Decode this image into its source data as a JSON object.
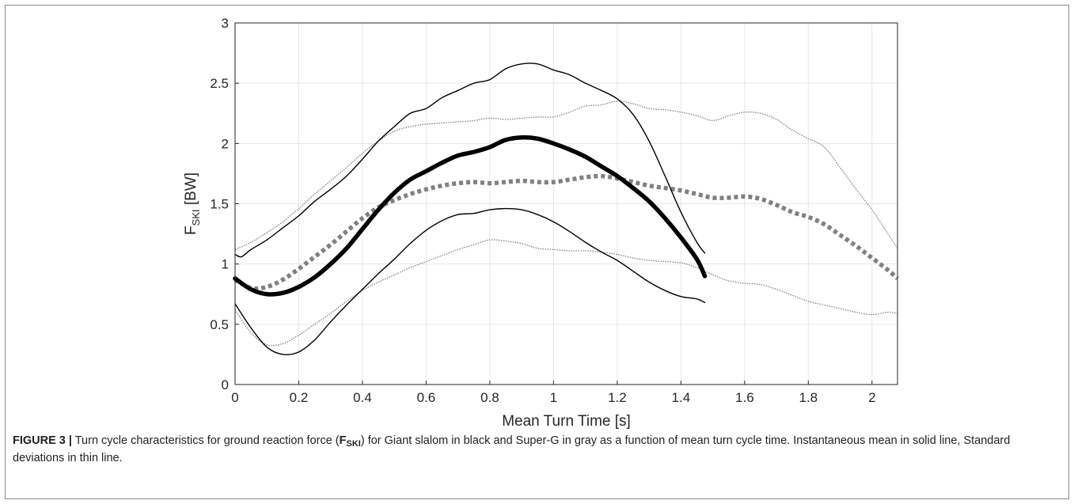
{
  "chart_data": {
    "type": "line",
    "xlabel": "Mean Turn Time [s]",
    "ylabel_main": "F",
    "ylabel_sub": "SKI",
    "ylabel_unit": " [BW]",
    "xlim": [
      0,
      2.08
    ],
    "ylim": [
      0,
      3
    ],
    "xticks": [
      0,
      0.2,
      0.4,
      0.6,
      0.8,
      1,
      1.2,
      1.4,
      1.6,
      1.8,
      2
    ],
    "yticks": [
      0,
      0.5,
      1,
      1.5,
      2,
      2.5,
      3
    ],
    "grid": true,
    "series": [
      {
        "color": "#000000",
        "style": "mean-solid",
        "x": [
          0,
          0.05,
          0.1,
          0.15,
          0.2,
          0.25,
          0.3,
          0.35,
          0.4,
          0.45,
          0.5,
          0.55,
          0.6,
          0.65,
          0.7,
          0.75,
          0.8,
          0.85,
          0.9,
          0.95,
          1.0,
          1.05,
          1.1,
          1.15,
          1.2,
          1.25,
          1.3,
          1.35,
          1.4,
          1.45,
          1.475
        ],
        "y": [
          0.88,
          0.79,
          0.75,
          0.76,
          0.81,
          0.89,
          1.0,
          1.13,
          1.29,
          1.45,
          1.59,
          1.7,
          1.77,
          1.84,
          1.9,
          1.93,
          1.97,
          2.03,
          2.05,
          2.04,
          2.0,
          1.95,
          1.89,
          1.81,
          1.73,
          1.63,
          1.52,
          1.38,
          1.22,
          1.04,
          0.9
        ]
      },
      {
        "color": "#000000",
        "style": "sd-solid",
        "x": [
          0,
          0.02,
          0.05,
          0.1,
          0.15,
          0.2,
          0.25,
          0.3,
          0.35,
          0.4,
          0.45,
          0.5,
          0.55,
          0.6,
          0.65,
          0.7,
          0.75,
          0.8,
          0.85,
          0.9,
          0.95,
          1.0,
          1.05,
          1.1,
          1.15,
          1.2,
          1.25,
          1.3,
          1.35,
          1.4,
          1.45,
          1.475
        ],
        "y": [
          1.08,
          1.06,
          1.12,
          1.2,
          1.3,
          1.4,
          1.52,
          1.62,
          1.73,
          1.87,
          2.02,
          2.14,
          2.25,
          2.29,
          2.38,
          2.44,
          2.5,
          2.53,
          2.62,
          2.66,
          2.66,
          2.61,
          2.57,
          2.5,
          2.44,
          2.37,
          2.24,
          2.02,
          1.73,
          1.43,
          1.18,
          1.09
        ]
      },
      {
        "color": "#000000",
        "style": "sd-solid",
        "x": [
          0,
          0.05,
          0.1,
          0.15,
          0.2,
          0.25,
          0.3,
          0.35,
          0.4,
          0.45,
          0.5,
          0.55,
          0.6,
          0.65,
          0.7,
          0.75,
          0.8,
          0.85,
          0.9,
          0.95,
          1.0,
          1.05,
          1.1,
          1.15,
          1.2,
          1.25,
          1.3,
          1.35,
          1.4,
          1.45,
          1.475
        ],
        "y": [
          0.67,
          0.47,
          0.31,
          0.25,
          0.27,
          0.37,
          0.52,
          0.66,
          0.79,
          0.92,
          1.04,
          1.17,
          1.28,
          1.36,
          1.41,
          1.42,
          1.45,
          1.46,
          1.45,
          1.41,
          1.35,
          1.27,
          1.18,
          1.1,
          1.03,
          0.94,
          0.85,
          0.78,
          0.73,
          0.71,
          0.68
        ]
      },
      {
        "color": "#808080",
        "style": "mean-dotted",
        "x": [
          0,
          0.05,
          0.1,
          0.15,
          0.2,
          0.25,
          0.3,
          0.35,
          0.4,
          0.45,
          0.5,
          0.55,
          0.6,
          0.65,
          0.7,
          0.75,
          0.8,
          0.85,
          0.9,
          0.95,
          1.0,
          1.05,
          1.1,
          1.15,
          1.2,
          1.25,
          1.3,
          1.35,
          1.4,
          1.45,
          1.5,
          1.55,
          1.6,
          1.65,
          1.7,
          1.75,
          1.8,
          1.85,
          1.9,
          1.95,
          2.0,
          2.05,
          2.08
        ],
        "y": [
          0.87,
          0.8,
          0.81,
          0.87,
          0.96,
          1.06,
          1.16,
          1.27,
          1.38,
          1.47,
          1.53,
          1.58,
          1.62,
          1.65,
          1.67,
          1.68,
          1.67,
          1.68,
          1.69,
          1.68,
          1.68,
          1.7,
          1.72,
          1.73,
          1.71,
          1.68,
          1.65,
          1.63,
          1.61,
          1.58,
          1.55,
          1.55,
          1.56,
          1.54,
          1.49,
          1.43,
          1.39,
          1.33,
          1.24,
          1.15,
          1.05,
          0.95,
          0.88
        ]
      },
      {
        "color": "#808080",
        "style": "sd-dotted",
        "x": [
          0,
          0.05,
          0.1,
          0.15,
          0.2,
          0.25,
          0.3,
          0.35,
          0.4,
          0.45,
          0.5,
          0.55,
          0.6,
          0.65,
          0.7,
          0.75,
          0.8,
          0.85,
          0.9,
          0.95,
          1.0,
          1.05,
          1.1,
          1.15,
          1.2,
          1.25,
          1.3,
          1.35,
          1.4,
          1.45,
          1.5,
          1.55,
          1.6,
          1.65,
          1.7,
          1.75,
          1.8,
          1.85,
          1.9,
          1.95,
          2.0,
          2.05,
          2.08
        ],
        "y": [
          1.12,
          1.18,
          1.26,
          1.35,
          1.46,
          1.58,
          1.69,
          1.8,
          1.92,
          2.02,
          2.1,
          2.14,
          2.16,
          2.17,
          2.18,
          2.19,
          2.21,
          2.2,
          2.21,
          2.22,
          2.22,
          2.26,
          2.31,
          2.32,
          2.35,
          2.33,
          2.29,
          2.28,
          2.26,
          2.23,
          2.19,
          2.23,
          2.26,
          2.25,
          2.2,
          2.11,
          2.04,
          1.97,
          1.8,
          1.62,
          1.45,
          1.25,
          1.13
        ]
      },
      {
        "color": "#808080",
        "style": "sd-dotted",
        "x": [
          0,
          0.05,
          0.1,
          0.15,
          0.2,
          0.25,
          0.3,
          0.35,
          0.4,
          0.45,
          0.5,
          0.55,
          0.6,
          0.65,
          0.7,
          0.75,
          0.8,
          0.85,
          0.9,
          0.95,
          1.0,
          1.05,
          1.1,
          1.15,
          1.2,
          1.25,
          1.3,
          1.35,
          1.4,
          1.45,
          1.5,
          1.55,
          1.6,
          1.65,
          1.7,
          1.75,
          1.8,
          1.85,
          1.9,
          1.95,
          2.0,
          2.05,
          2.08
        ],
        "y": [
          0.62,
          0.43,
          0.33,
          0.34,
          0.41,
          0.5,
          0.59,
          0.69,
          0.78,
          0.85,
          0.91,
          0.97,
          1.02,
          1.07,
          1.12,
          1.16,
          1.2,
          1.19,
          1.17,
          1.13,
          1.12,
          1.11,
          1.11,
          1.1,
          1.08,
          1.05,
          1.03,
          1.02,
          1.01,
          0.97,
          0.91,
          0.86,
          0.84,
          0.83,
          0.79,
          0.74,
          0.69,
          0.66,
          0.63,
          0.6,
          0.58,
          0.6,
          0.59
        ]
      }
    ]
  },
  "caption": {
    "label": "FIGURE 3 |",
    "text_before": " Turn cycle characteristics for ground reaction force (",
    "symbol_main": "F",
    "symbol_sub": "SKI",
    "text_after": ") for Giant slalom in black and Super-G in gray as a function of mean turn cycle time. Instantaneous mean in solid line, Standard deviations in thin line."
  }
}
